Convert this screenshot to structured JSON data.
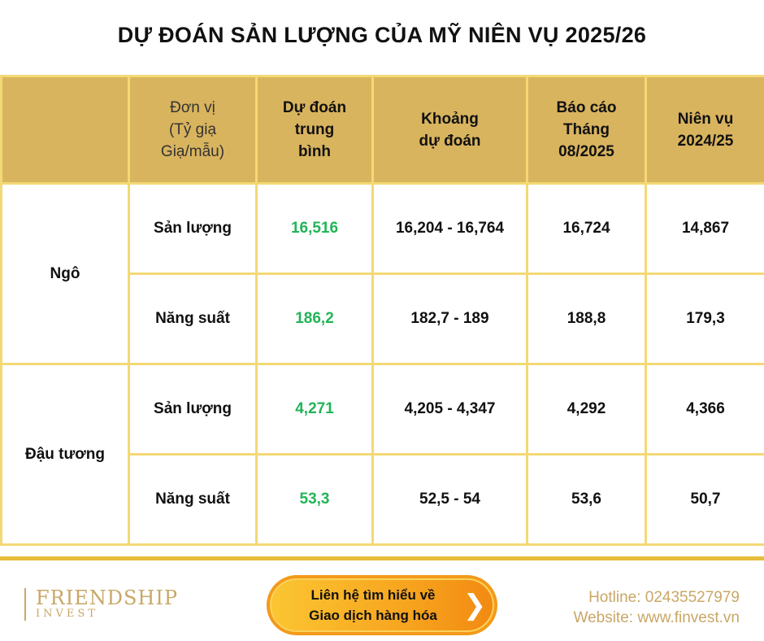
{
  "title": "DỰ ĐOÁN SẢN LƯỢNG CỦA MỸ NIÊN VỤ 2025/26",
  "table": {
    "headers": {
      "unit": [
        "Đơn vị",
        "(Tỷ giạ",
        "Giạ/mẫu)"
      ],
      "avg": [
        "Dự đoán",
        "trung",
        "bình"
      ],
      "range": [
        "Khoảng",
        "dự đoán"
      ],
      "report": [
        "Báo cáo",
        "Tháng",
        "08/2025"
      ],
      "season": [
        "Niên vụ",
        "2024/25"
      ]
    },
    "groups": [
      {
        "name": "Ngô",
        "rows": [
          {
            "metric": "Sản lượng",
            "avg": "16,516",
            "range": "16,204 - 16,764",
            "report": "16,724",
            "season": "14,867"
          },
          {
            "metric": "Năng suất",
            "avg": "186,2",
            "range": "182,7 - 189",
            "report": "188,8",
            "season": "179,3"
          }
        ]
      },
      {
        "name": "Đậu tương",
        "rows": [
          {
            "metric": "Sản lượng",
            "avg": "4,271",
            "range": "4,205 - 4,347",
            "report": "4,292",
            "season": "4,366"
          },
          {
            "metric": "Năng suất",
            "avg": "53,3",
            "range": "52,5 - 54",
            "report": "53,6",
            "season": "50,7"
          }
        ]
      }
    ]
  },
  "footer": {
    "logo": {
      "line1": "FRIENDSHIP",
      "line2": "INVEST"
    },
    "cta": {
      "line1": "Liên hệ tìm hiểu về",
      "line2": "Giao dịch hàng hóa",
      "icon": "chevron-right-icon"
    },
    "hotline": "Hotline: 02435527979",
    "website": "Website: www.finvest.vn"
  },
  "colors": {
    "header_bg": "#d9b45e",
    "border": "#f3d975",
    "highlight": "#21b457",
    "cta": "#f7a51f"
  }
}
